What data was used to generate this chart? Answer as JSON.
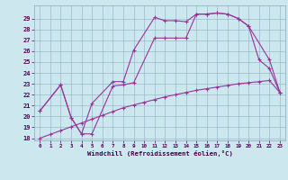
{
  "xlabel": "Windchill (Refroidissement éolien,°C)",
  "bg_color": "#cce8ee",
  "grid_color": "#99bbcc",
  "line_color": "#993399",
  "xlim_min": -0.5,
  "xlim_max": 23.5,
  "ylim_min": 17.8,
  "ylim_max": 30.2,
  "xticks": [
    0,
    1,
    2,
    3,
    4,
    5,
    6,
    7,
    8,
    9,
    10,
    11,
    12,
    13,
    14,
    15,
    16,
    17,
    18,
    19,
    20,
    21,
    22,
    23
  ],
  "yticks": [
    18,
    19,
    20,
    21,
    22,
    23,
    24,
    25,
    26,
    27,
    28,
    29
  ],
  "line1_x": [
    0,
    2,
    3,
    4,
    5,
    7,
    8,
    9,
    11,
    12,
    13,
    14,
    15,
    16,
    17,
    18,
    19,
    20,
    22,
    23
  ],
  "line1_y": [
    20.5,
    22.9,
    19.9,
    18.4,
    21.2,
    23.2,
    23.2,
    26.1,
    29.1,
    28.8,
    28.8,
    28.7,
    29.4,
    29.4,
    29.5,
    29.4,
    29.0,
    28.3,
    25.2,
    22.2
  ],
  "line2_x": [
    0,
    2,
    3,
    4,
    5,
    7,
    8,
    9,
    11,
    12,
    13,
    14,
    15,
    16,
    17,
    18,
    19,
    20,
    21,
    22,
    23
  ],
  "line2_y": [
    20.5,
    22.9,
    19.9,
    18.4,
    18.4,
    22.8,
    22.9,
    23.1,
    27.2,
    27.2,
    27.2,
    27.2,
    29.4,
    29.4,
    29.5,
    29.4,
    29.0,
    28.3,
    25.2,
    24.4,
    22.2
  ],
  "line3_x": [
    0,
    1,
    2,
    3,
    4,
    5,
    6,
    7,
    8,
    9,
    10,
    11,
    12,
    13,
    14,
    15,
    16,
    17,
    18,
    19,
    20,
    21,
    22,
    23
  ],
  "line3_y": [
    18.0,
    18.35,
    18.7,
    19.05,
    19.4,
    19.75,
    20.1,
    20.45,
    20.8,
    21.05,
    21.3,
    21.55,
    21.8,
    22.0,
    22.2,
    22.4,
    22.55,
    22.7,
    22.85,
    23.0,
    23.1,
    23.2,
    23.3,
    22.2
  ]
}
